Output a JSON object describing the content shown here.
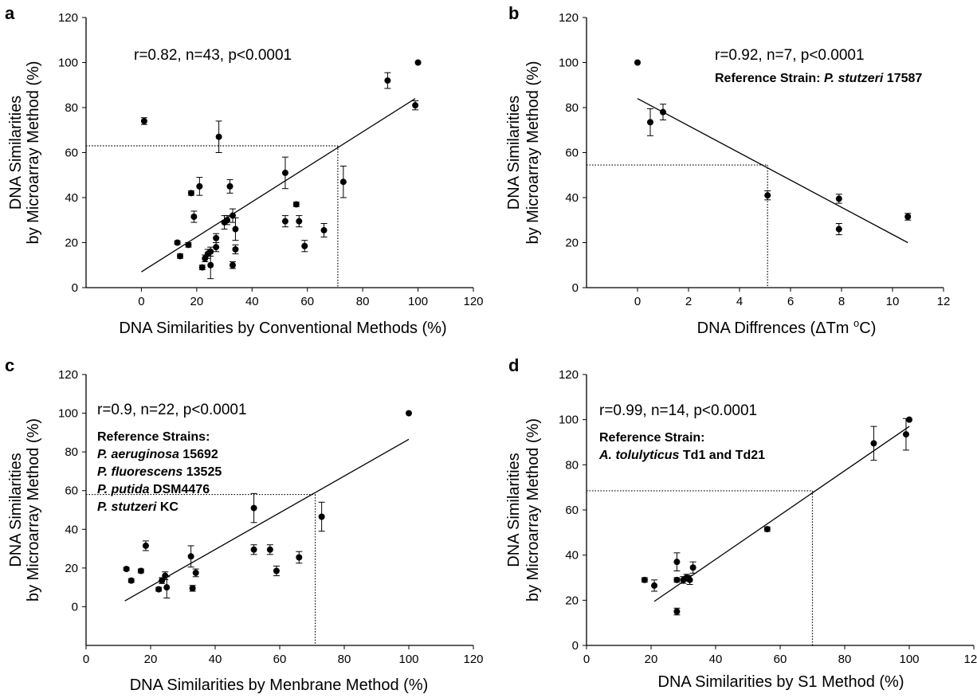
{
  "figure": {
    "panels": [
      {
        "letter": "a",
        "stats": "r=0.82, n=43, p<0.0001",
        "note_lines": []
      },
      {
        "letter": "b",
        "stats": "r=0.92, n=7, p<0.0001",
        "note_lines": [
          [
            {
              "t": "Reference Strain: ",
              "i": false
            },
            {
              "t": "P. stutzeri",
              "i": true
            },
            {
              "t": " 17587",
              "i": false
            }
          ]
        ]
      },
      {
        "letter": "c",
        "stats": "r=0.9, n=22, p<0.0001",
        "note_lines": [
          [
            {
              "t": "Reference Strains:",
              "i": false
            }
          ],
          [
            {
              "t": "P. aeruginosa",
              "i": true
            },
            {
              "t": " 15692",
              "i": false
            }
          ],
          [
            {
              "t": "P. fluorescens",
              "i": true
            },
            {
              "t": " 13525",
              "i": false
            }
          ],
          [
            {
              "t": "P. putida",
              "i": true
            },
            {
              "t": " DSM4476",
              "i": false
            }
          ],
          [
            {
              "t": "P. stutzeri",
              "i": true
            },
            {
              "t": " KC",
              "i": false
            }
          ]
        ]
      },
      {
        "letter": "d",
        "stats": "r=0.99, n=14, p<0.0001",
        "note_lines": [
          [
            {
              "t": "Reference Strain:",
              "i": false
            }
          ],
          [
            {
              "t": "A. tolulyticus",
              "i": true
            },
            {
              "t": " Td1 and Td21",
              "i": false
            }
          ]
        ]
      }
    ]
  },
  "chart_data": [
    {
      "type": "scatter",
      "xlabel": "DNA Similarities by Conventional Methods (%)",
      "ylabel_lines": [
        "DNA Similarities",
        "by Microarray Method (%)"
      ],
      "xlim": [
        -20,
        120
      ],
      "ylim": [
        0,
        120
      ],
      "xticks": [
        "0",
        "20",
        "40",
        "60",
        "80",
        "100",
        "120"
      ],
      "yticks": [
        "0",
        "20",
        "40",
        "60",
        "80",
        "100",
        "120"
      ],
      "grid": false,
      "points": [
        {
          "x": 1,
          "y": 74,
          "err": 1.5
        },
        {
          "x": 13,
          "y": 20,
          "err": 0.8
        },
        {
          "x": 14,
          "y": 14,
          "err": 1
        },
        {
          "x": 17,
          "y": 19,
          "err": 1
        },
        {
          "x": 18,
          "y": 42,
          "err": 1
        },
        {
          "x": 19,
          "y": 31.5,
          "err": 2.5
        },
        {
          "x": 21,
          "y": 45,
          "err": 4
        },
        {
          "x": 22,
          "y": 9,
          "err": 1
        },
        {
          "x": 23,
          "y": 13,
          "err": 1.5
        },
        {
          "x": 24,
          "y": 15,
          "err": 2
        },
        {
          "x": 25,
          "y": 10,
          "err": 6
        },
        {
          "x": 25,
          "y": 16,
          "err": 2
        },
        {
          "x": 27,
          "y": 18,
          "err": 2
        },
        {
          "x": 27,
          "y": 22,
          "err": 2
        },
        {
          "x": 28,
          "y": 67,
          "err": 7
        },
        {
          "x": 30,
          "y": 29,
          "err": 3
        },
        {
          "x": 31,
          "y": 30,
          "err": 2
        },
        {
          "x": 32,
          "y": 45,
          "err": 3
        },
        {
          "x": 33,
          "y": 32,
          "err": 3
        },
        {
          "x": 33,
          "y": 10,
          "err": 1.5
        },
        {
          "x": 34,
          "y": 26,
          "err": 5
        },
        {
          "x": 34,
          "y": 17,
          "err": 2
        },
        {
          "x": 52,
          "y": 51,
          "err": 7
        },
        {
          "x": 52,
          "y": 29.5,
          "err": 2.5
        },
        {
          "x": 56,
          "y": 37,
          "err": 1
        },
        {
          "x": 57,
          "y": 29.5,
          "err": 2.5
        },
        {
          "x": 59,
          "y": 18.5,
          "err": 2.5
        },
        {
          "x": 66,
          "y": 25.5,
          "err": 3
        },
        {
          "x": 73,
          "y": 47,
          "err": 7
        },
        {
          "x": 89,
          "y": 92,
          "err": 3.5
        },
        {
          "x": 99,
          "y": 81,
          "err": 2
        },
        {
          "x": 100,
          "y": 100,
          "err": 0
        }
      ],
      "fit_line": [
        [
          0,
          7
        ],
        [
          99,
          84
        ]
      ],
      "reference": {
        "x": 71,
        "y": 63
      }
    },
    {
      "type": "scatter",
      "xlabel_parts": [
        "DNA Diffrences (",
        "ΔTm ",
        "o",
        "C)"
      ],
      "ylabel_lines": [
        "DNA Similarities",
        "by Microarray Method (%)"
      ],
      "xlim": [
        -2,
        12
      ],
      "ylim": [
        0,
        120
      ],
      "xticks": [
        "0",
        "2",
        "4",
        "6",
        "8",
        "10",
        "12"
      ],
      "yticks": [
        "0",
        "20",
        "40",
        "60",
        "80",
        "100",
        "120"
      ],
      "grid": false,
      "points": [
        {
          "x": 0,
          "y": 100,
          "err": 0
        },
        {
          "x": 0.5,
          "y": 73.5,
          "err": 6
        },
        {
          "x": 1,
          "y": 78,
          "err": 3.5
        },
        {
          "x": 5.1,
          "y": 41,
          "err": 2
        },
        {
          "x": 7.9,
          "y": 39.5,
          "err": 2
        },
        {
          "x": 7.9,
          "y": 26,
          "err": 2.5
        },
        {
          "x": 10.6,
          "y": 31.5,
          "err": 1.5
        }
      ],
      "fit_line": [
        [
          0,
          84
        ],
        [
          10.6,
          20
        ]
      ],
      "reference": {
        "x": 5.1,
        "y": 54.5
      }
    },
    {
      "type": "scatter",
      "xlabel": "DNA Similarities by Menbrane Method (%)",
      "ylabel_lines": [
        "DNA Similarities",
        "by Microarray Method (%)"
      ],
      "xlim": [
        0,
        120
      ],
      "ylim": [
        -20,
        120
      ],
      "xticks": [
        "0",
        "20",
        "40",
        "60",
        "80",
        "100",
        "120"
      ],
      "yticks": [
        "0",
        "20",
        "40",
        "60",
        "80",
        "100",
        "120"
      ],
      "grid": false,
      "points": [
        {
          "x": 12.5,
          "y": 19.5,
          "err": 0.8
        },
        {
          "x": 14,
          "y": 13.5,
          "err": 1
        },
        {
          "x": 17,
          "y": 18.5,
          "err": 1
        },
        {
          "x": 18.5,
          "y": 31.5,
          "err": 2.5
        },
        {
          "x": 22.5,
          "y": 9,
          "err": 1
        },
        {
          "x": 23.5,
          "y": 13.5,
          "err": 1.5
        },
        {
          "x": 24.5,
          "y": 16,
          "err": 2
        },
        {
          "x": 25,
          "y": 10,
          "err": 5.5
        },
        {
          "x": 32.5,
          "y": 26,
          "err": 5.5
        },
        {
          "x": 33,
          "y": 9.5,
          "err": 1.5
        },
        {
          "x": 34,
          "y": 17.5,
          "err": 2
        },
        {
          "x": 52,
          "y": 51,
          "err": 7.5
        },
        {
          "x": 52,
          "y": 29.5,
          "err": 2.5
        },
        {
          "x": 57,
          "y": 29.5,
          "err": 2.5
        },
        {
          "x": 59,
          "y": 18.5,
          "err": 2.5
        },
        {
          "x": 66,
          "y": 25.5,
          "err": 3
        },
        {
          "x": 73,
          "y": 46.5,
          "err": 7.5
        },
        {
          "x": 100,
          "y": 100,
          "err": 0
        }
      ],
      "fit_line": [
        [
          12,
          3
        ],
        [
          100,
          86.5
        ]
      ],
      "reference": {
        "x": 71,
        "y": 58
      }
    },
    {
      "type": "scatter",
      "xlabel": "DNA Similarities by S1 Method (%)",
      "ylabel_lines": [
        "DNA Similarities",
        "by Microarray Method (%)"
      ],
      "xlim": [
        0,
        120
      ],
      "ylim": [
        0,
        120
      ],
      "xticks": [
        "0",
        "20",
        "40",
        "60",
        "80",
        "100",
        "120"
      ],
      "yticks": [
        "0",
        "20",
        "40",
        "60",
        "80",
        "100",
        "120"
      ],
      "grid": false,
      "points": [
        {
          "x": 18,
          "y": 29,
          "err": 1
        },
        {
          "x": 21,
          "y": 26.5,
          "err": 2.5
        },
        {
          "x": 28,
          "y": 37,
          "err": 4
        },
        {
          "x": 28,
          "y": 29,
          "err": 1
        },
        {
          "x": 28,
          "y": 15,
          "err": 1.5
        },
        {
          "x": 30,
          "y": 29,
          "err": 1.5
        },
        {
          "x": 31,
          "y": 30,
          "err": 1.5
        },
        {
          "x": 32,
          "y": 29,
          "err": 2
        },
        {
          "x": 33,
          "y": 34.5,
          "err": 2.5
        },
        {
          "x": 56,
          "y": 51.5,
          "err": 1
        },
        {
          "x": 89,
          "y": 89.5,
          "err": 7.5
        },
        {
          "x": 99,
          "y": 93.5,
          "err": 7
        },
        {
          "x": 100,
          "y": 100,
          "err": 0
        }
      ],
      "fit_line": [
        [
          21,
          19.5
        ],
        [
          100,
          97
        ]
      ],
      "reference": {
        "x": 70,
        "y": 68.5
      }
    }
  ]
}
